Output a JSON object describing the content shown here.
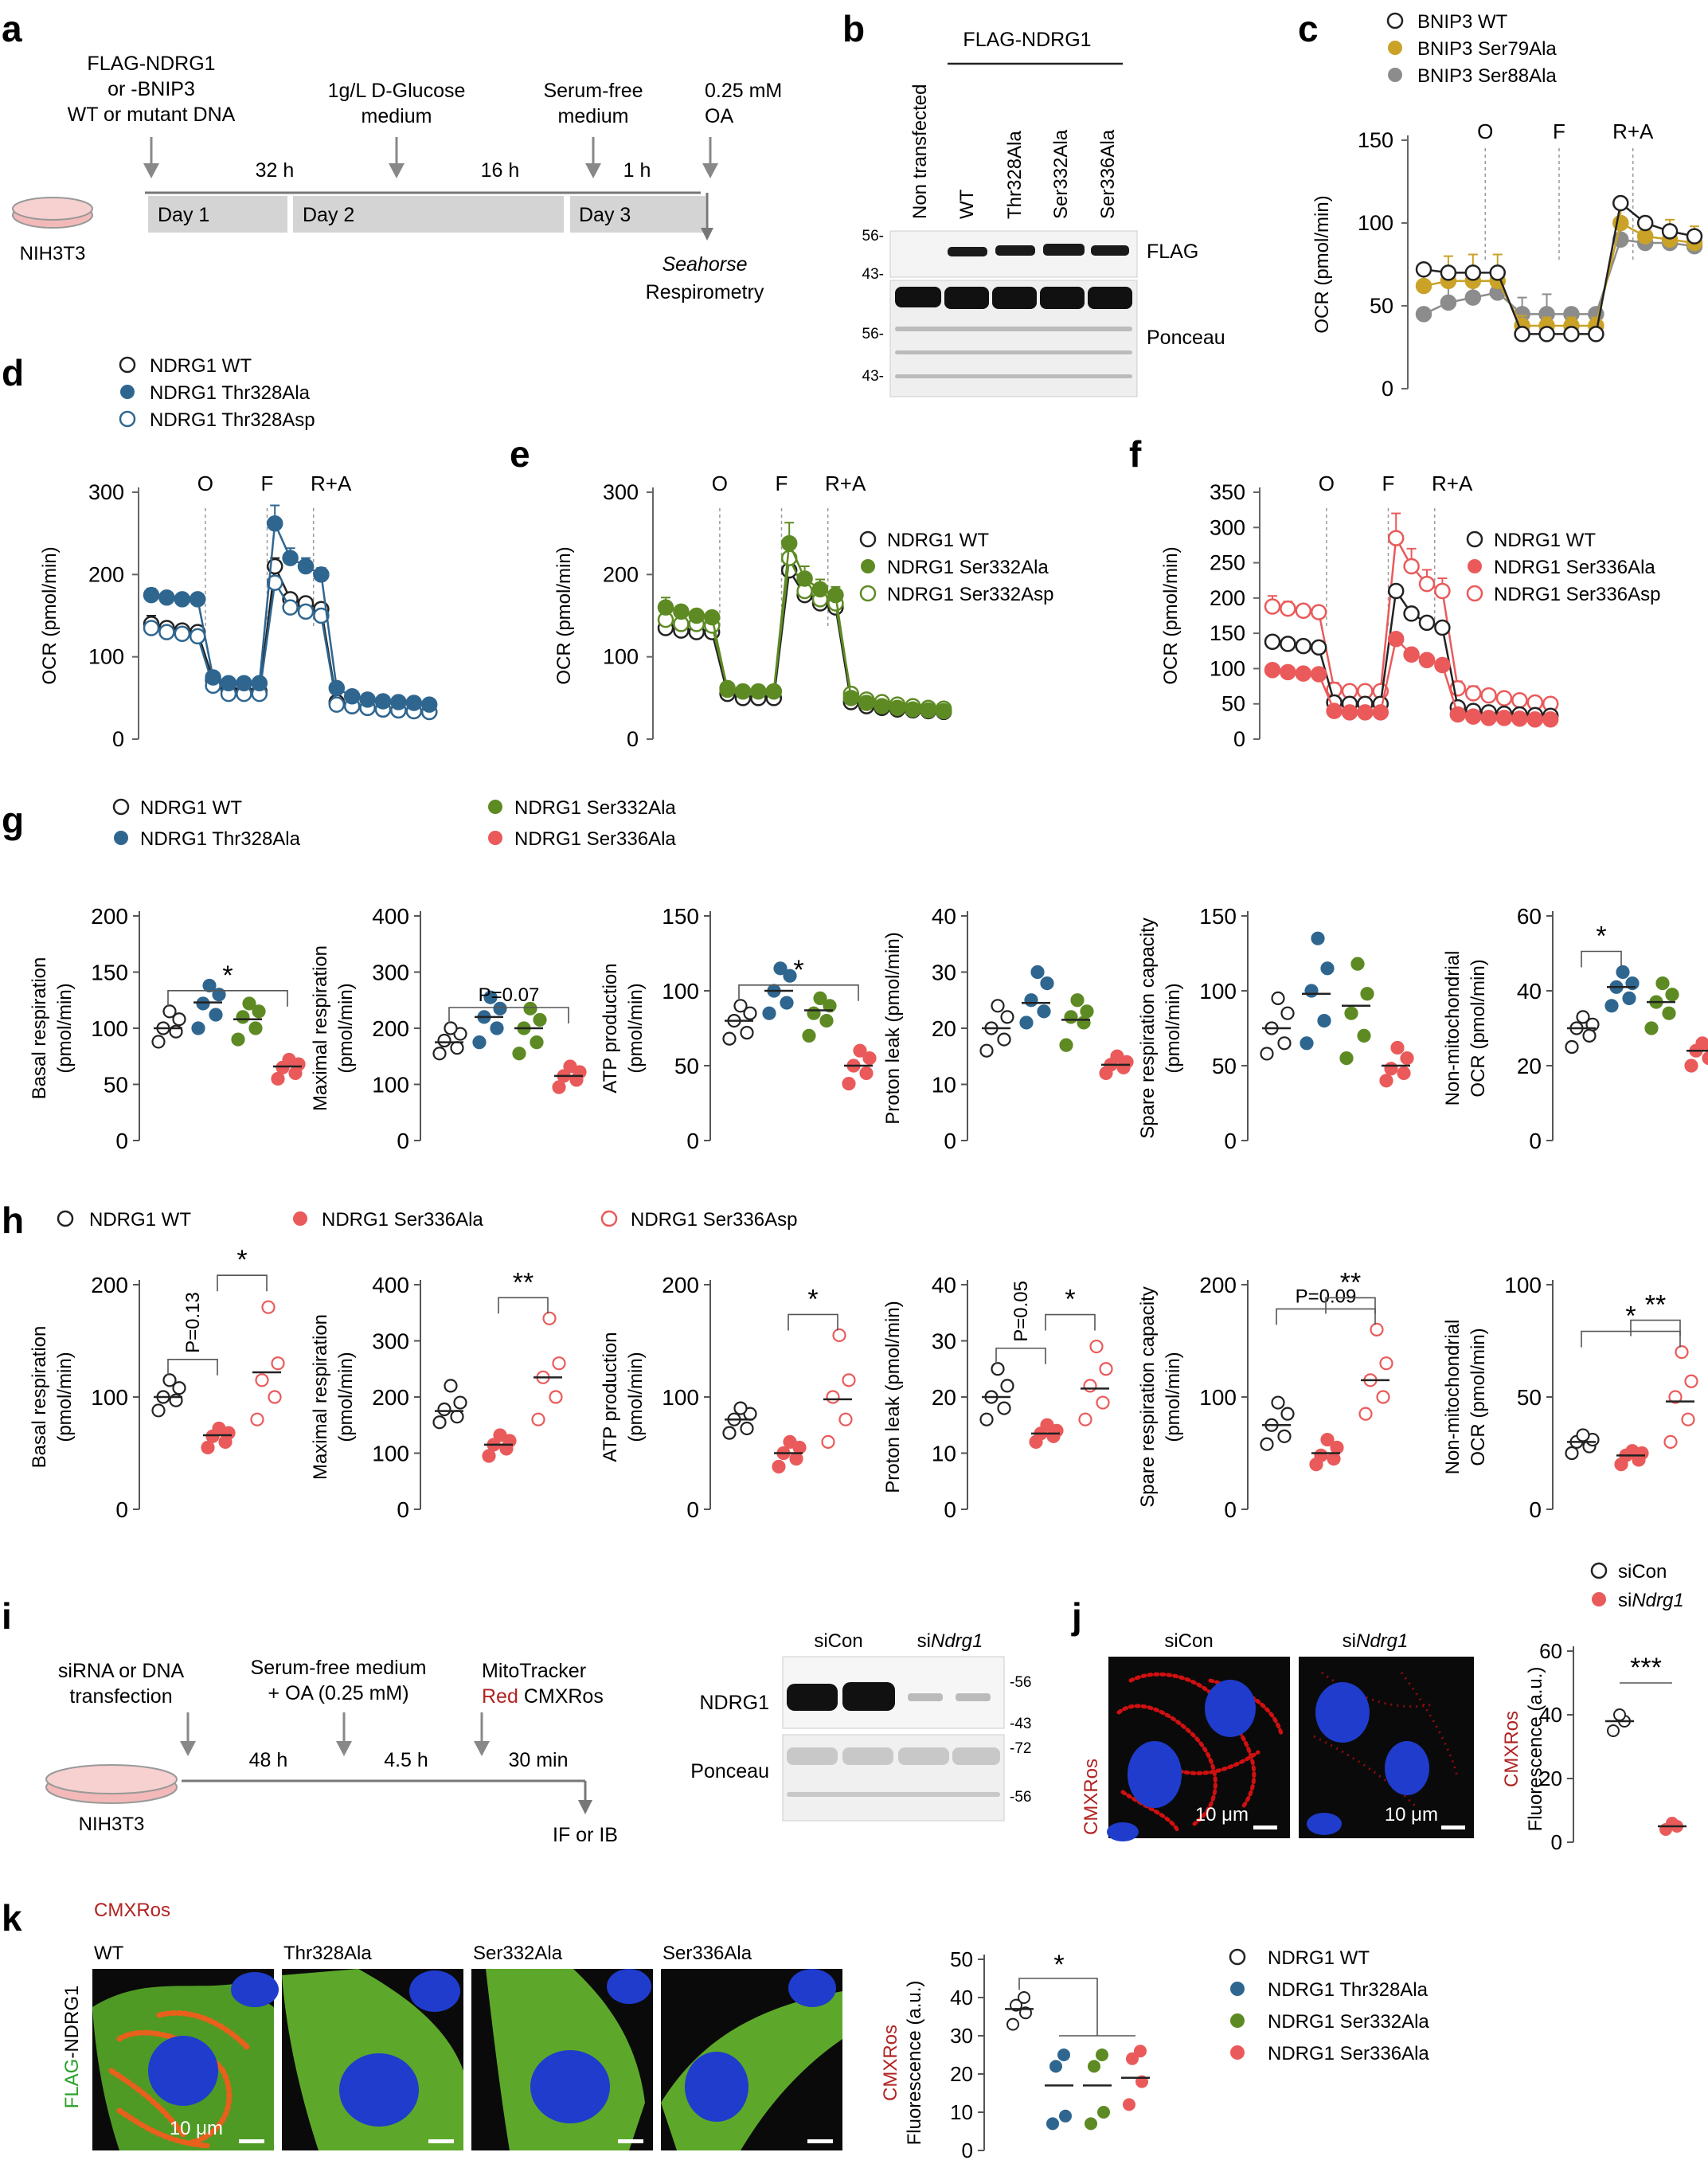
{
  "colors": {
    "wt": "#222222",
    "thr328": "#2f6690",
    "ser332": "#5e8a24",
    "ser336": "#ea5a5a",
    "ser336asp": "#ea5a5a",
    "bnip3_79": "#c9a227",
    "bnip3_88": "#8c8c8c",
    "dish": "#f3b9b9",
    "cmxros": "#b22222",
    "flag": "#2aa02a"
  },
  "panel_a": {
    "letter": "a",
    "step1": [
      "FLAG-NDRG1",
      "or -BNIP3",
      "WT or mutant DNA"
    ],
    "step2": [
      "1g/L D-Glucose",
      "medium"
    ],
    "step3": [
      "Serum-free",
      "medium"
    ],
    "step4": [
      "0.25 mM",
      "OA"
    ],
    "dur1": "32 h",
    "dur2": "16 h",
    "dur3": "1 h",
    "day1": "Day 1",
    "day2": "Day 2",
    "day3": "Day 3",
    "cell": "NIH3T3",
    "readout": [
      "Seahorse",
      "Respirometry"
    ]
  },
  "panel_b": {
    "letter": "b",
    "header": "FLAG-NDRG1",
    "lanes": [
      "Non transfected",
      "WT",
      "Thr328Ala",
      "Ser332Ala",
      "Ser336Ala"
    ],
    "mw_top": [
      "56-",
      "43-"
    ],
    "mw_bottom": [
      "56-",
      "43-"
    ],
    "blot1": "FLAG",
    "blot2": "Ponceau"
  },
  "seahorse": {
    "ylabel": "OCR (pmol/min)",
    "injections": [
      "O",
      "F",
      "R+A"
    ]
  },
  "panel_c": {
    "letter": "c",
    "legend": [
      "BNIP3 WT",
      "BNIP3 Ser79Ala",
      "BNIP3 Ser88Ala"
    ],
    "yticks": [
      "0",
      "50",
      "100",
      "150"
    ]
  },
  "panel_d": {
    "letter": "d",
    "legend": [
      "NDRG1 WT",
      "NDRG1 Thr328Ala",
      "NDRG1 Thr328Asp"
    ],
    "yticks": [
      "0",
      "100",
      "200",
      "300"
    ]
  },
  "panel_e": {
    "letter": "e",
    "legend": [
      "NDRG1 WT",
      "NDRG1 Ser332Ala",
      "NDRG1 Ser332Asp"
    ],
    "yticks": [
      "0",
      "100",
      "200",
      "300"
    ]
  },
  "panel_f": {
    "letter": "f",
    "legend": [
      "NDRG1 WT",
      "NDRG1 Ser336Ala",
      "NDRG1 Ser336Asp"
    ],
    "yticks": [
      "0",
      "50",
      "100",
      "150",
      "200",
      "250",
      "300",
      "350"
    ]
  },
  "panel_g": {
    "letter": "g",
    "legend": [
      "NDRG1 WT",
      "NDRG1 Thr328Ala",
      "NDRG1 Ser332Ala",
      "NDRG1 Ser336Ala"
    ]
  },
  "panel_h": {
    "letter": "h",
    "legend": [
      "NDRG1 WT",
      "NDRG1 Ser336Ala",
      "NDRG1 Ser336Asp"
    ]
  },
  "scatter_g": [
    {
      "ylabel": [
        "Basal respiration",
        "(pmol/min)"
      ],
      "yticks": [
        "0",
        "50",
        "100",
        "150",
        "200"
      ],
      "ymax": 200,
      "groups": [
        [
          88,
          97,
          100,
          108,
          115
        ],
        [
          100,
          112,
          122,
          130,
          138
        ],
        [
          90,
          100,
          110,
          115,
          122
        ],
        [
          55,
          60,
          65,
          68,
          72
        ]
      ],
      "means": [
        100,
        123,
        108,
        66
      ],
      "stats": [
        {
          "type": "bracket",
          "from": 0,
          "to": 3,
          "label": "*"
        }
      ]
    },
    {
      "ylabel": [
        "Maximal respiration",
        "(pmol/min)"
      ],
      "yticks": [
        "0",
        "100",
        "200",
        "300",
        "400"
      ],
      "ymax": 400,
      "groups": [
        [
          155,
          165,
          178,
          190,
          200
        ],
        [
          175,
          200,
          220,
          235,
          255
        ],
        [
          155,
          175,
          200,
          215,
          235
        ],
        [
          95,
          108,
          115,
          122,
          132
        ]
      ],
      "means": [
        175,
        220,
        200,
        115
      ],
      "stats": [
        {
          "type": "bracket",
          "from": 0,
          "to": 3,
          "label": "P=0.07"
        }
      ]
    },
    {
      "ylabel": [
        "ATP production",
        "(pmol/min)"
      ],
      "yticks": [
        "0",
        "50",
        "100",
        "150"
      ],
      "ymax": 150,
      "groups": [
        [
          68,
          72,
          80,
          85,
          90
        ],
        [
          85,
          92,
          100,
          110,
          115
        ],
        [
          70,
          80,
          85,
          90,
          95
        ],
        [
          38,
          45,
          50,
          55,
          60
        ]
      ],
      "means": [
        80,
        100,
        87,
        50
      ],
      "stats": [
        {
          "type": "bracket",
          "from": 0,
          "to": 3,
          "label": "*"
        }
      ]
    },
    {
      "ylabel": [
        "Proton leak (pmol/min)"
      ],
      "yticks": [
        "0",
        "10",
        "20",
        "30",
        "40"
      ],
      "ymax": 40,
      "groups": [
        [
          16,
          18,
          20,
          22,
          24
        ],
        [
          21,
          23,
          25,
          28,
          30
        ],
        [
          17,
          21,
          22,
          23,
          25
        ],
        [
          12,
          13,
          13.5,
          14,
          15
        ]
      ],
      "means": [
        20,
        24.5,
        21.5,
        13.5
      ],
      "stats": []
    },
    {
      "ylabel": [
        "Spare respiration capacity",
        "(pmol/min)"
      ],
      "yticks": [
        "0",
        "50",
        "100",
        "150"
      ],
      "ymax": 150,
      "groups": [
        [
          58,
          65,
          75,
          85,
          95
        ],
        [
          65,
          80,
          100,
          115,
          135
        ],
        [
          55,
          70,
          85,
          98,
          118
        ],
        [
          40,
          45,
          48,
          55,
          62
        ]
      ],
      "means": [
        75,
        98,
        90,
        50
      ],
      "stats": []
    },
    {
      "ylabel": [
        "Non-mitochondrial",
        "OCR (pmol/min)"
      ],
      "yticks": [
        "0",
        "20",
        "40",
        "60"
      ],
      "ymax": 60,
      "groups": [
        [
          25,
          28,
          30,
          31,
          33
        ],
        [
          36,
          38,
          41,
          42,
          45
        ],
        [
          30,
          34,
          37,
          39,
          42
        ],
        [
          20,
          22,
          24,
          25,
          26
        ]
      ],
      "means": [
        30,
        41,
        37,
        24
      ],
      "stats": [
        {
          "type": "bracket",
          "from": 0,
          "to": 1,
          "label": "*"
        }
      ]
    }
  ],
  "scatter_h": [
    {
      "ylabel": [
        "Basal respiration",
        "(pmol/min)"
      ],
      "yticks": [
        "0",
        "100",
        "200"
      ],
      "ymax": 200,
      "groups": [
        [
          88,
          97,
          100,
          108,
          115
        ],
        [
          55,
          60,
          65,
          68,
          72
        ],
        [
          80,
          100,
          115,
          130,
          180
        ]
      ],
      "means": [
        100,
        66,
        122
      ],
      "stats": [
        {
          "type": "bracket",
          "from": 0,
          "to": 1,
          "label": "P=0.13",
          "vertical": true
        },
        {
          "type": "bracket",
          "from": 1,
          "to": 2,
          "label": "*"
        }
      ]
    },
    {
      "ylabel": [
        "Maximal respiration",
        "(pmol/min)"
      ],
      "yticks": [
        "0",
        "100",
        "200",
        "300",
        "400"
      ],
      "ymax": 400,
      "groups": [
        [
          155,
          165,
          178,
          190,
          220
        ],
        [
          95,
          108,
          115,
          122,
          132
        ],
        [
          160,
          200,
          235,
          260,
          340
        ]
      ],
      "means": [
        175,
        115,
        235
      ],
      "stats": [
        {
          "type": "bracket",
          "from": 1,
          "to": 2,
          "label": "**"
        }
      ]
    },
    {
      "ylabel": [
        "ATP production",
        "(pmol/min)"
      ],
      "yticks": [
        "0",
        "100",
        "200"
      ],
      "ymax": 200,
      "groups": [
        [
          68,
          72,
          80,
          85,
          90
        ],
        [
          38,
          45,
          50,
          55,
          60
        ],
        [
          60,
          80,
          100,
          115,
          155
        ]
      ],
      "means": [
        80,
        50,
        98
      ],
      "stats": [
        {
          "type": "bracket",
          "from": 1,
          "to": 2,
          "label": "*"
        }
      ]
    },
    {
      "ylabel": [
        "Proton leak (pmol/min)"
      ],
      "yticks": [
        "0",
        "10",
        "20",
        "30",
        "40"
      ],
      "ymax": 40,
      "groups": [
        [
          16,
          18,
          20,
          22,
          25
        ],
        [
          12,
          13,
          13.5,
          14,
          15
        ],
        [
          16,
          19,
          22,
          25,
          29
        ]
      ],
      "means": [
        20,
        13.5,
        21.5
      ],
      "stats": [
        {
          "type": "bracket",
          "from": 0,
          "to": 1,
          "label": "P=0.05",
          "vertical": true
        },
        {
          "type": "bracket",
          "from": 1,
          "to": 2,
          "label": "*"
        }
      ]
    },
    {
      "ylabel": [
        "Spare respiration capacity",
        "(pmol/min)"
      ],
      "yticks": [
        "0",
        "100",
        "200"
      ],
      "ymax": 200,
      "groups": [
        [
          58,
          65,
          75,
          85,
          95
        ],
        [
          40,
          45,
          48,
          55,
          62
        ],
        [
          85,
          100,
          115,
          130,
          160
        ]
      ],
      "means": [
        75,
        50,
        115
      ],
      "stats": [
        {
          "type": "bracket",
          "from": 0,
          "to": 2,
          "label": "P=0.09"
        },
        {
          "type": "bracket",
          "from": 1,
          "to": 2,
          "label": "**"
        }
      ]
    },
    {
      "ylabel": [
        "Non-mitochondrial",
        "OCR (pmol/min)"
      ],
      "yticks": [
        "0",
        "50",
        "100"
      ],
      "ymax": 100,
      "groups": [
        [
          25,
          28,
          30,
          31,
          33
        ],
        [
          20,
          22,
          24,
          25,
          26
        ],
        [
          30,
          40,
          50,
          57,
          70
        ]
      ],
      "means": [
        30,
        24,
        48
      ],
      "stats": [
        {
          "type": "bracket",
          "from": 0,
          "to": 2,
          "label": "*"
        },
        {
          "type": "bracket",
          "from": 1,
          "to": 2,
          "label": "**"
        }
      ]
    }
  ],
  "panel_i": {
    "letter": "i",
    "step1": [
      "siRNA or DNA",
      "transfection"
    ],
    "step2": [
      "Serum-free medium",
      "+ OA (0.25 mM)"
    ],
    "step3_a": "MitoTracker",
    "step3_b_red": "Red",
    "step3_b": " CMXRos",
    "dur1": "48 h",
    "dur2": "4.5 h",
    "dur3": "30 min",
    "cell": "NIH3T3",
    "readout": "IF or IB",
    "lanes": [
      "siCon",
      "siNdrg1"
    ],
    "lane2_prefix": "si",
    "lane2_italic": "Ndrg1",
    "blot1": "NDRG1",
    "blot2": "Ponceau",
    "mw": [
      "-56",
      "-43",
      "-72",
      "-56"
    ]
  },
  "panel_j": {
    "letter": "j",
    "stain": "CMXRos",
    "img_labels": [
      "siCon",
      "siNdrg1"
    ],
    "scale": "10 μm",
    "legend": [
      "siCon",
      "siNdrg1"
    ],
    "ylabel": [
      "CMXRos",
      "Fluorescence (a.u.)"
    ],
    "yticks": [
      "0",
      "20",
      "40",
      "60"
    ],
    "values": [
      [
        35,
        38,
        40
      ],
      [
        4,
        5,
        6
      ]
    ],
    "means": [
      38,
      5
    ],
    "stat": "***"
  },
  "panel_k": {
    "letter": "k",
    "stain_top": "CMXRos",
    "stain_left_flag": "FLAG",
    "stain_left_rest": "-NDRG1",
    "img_labels": [
      "WT",
      "Thr328Ala",
      "Ser332Ala",
      "Ser336Ala"
    ],
    "scale": "10 μm",
    "legend": [
      "NDRG1 WT",
      "NDRG1 Thr328Ala",
      "NDRG1 Ser332Ala",
      "NDRG1 Ser336Ala"
    ],
    "ylabel": [
      "CMXRos",
      "Fluorescence (a.u.)"
    ],
    "yticks": [
      "0",
      "10",
      "20",
      "30",
      "40",
      "50"
    ],
    "values": [
      [
        33,
        36,
        38,
        40
      ],
      [
        7,
        9,
        22,
        25
      ],
      [
        7,
        10,
        22,
        25
      ],
      [
        12,
        18,
        24,
        26
      ]
    ],
    "means": [
      37,
      17,
      17,
      19
    ],
    "stat": "*"
  }
}
